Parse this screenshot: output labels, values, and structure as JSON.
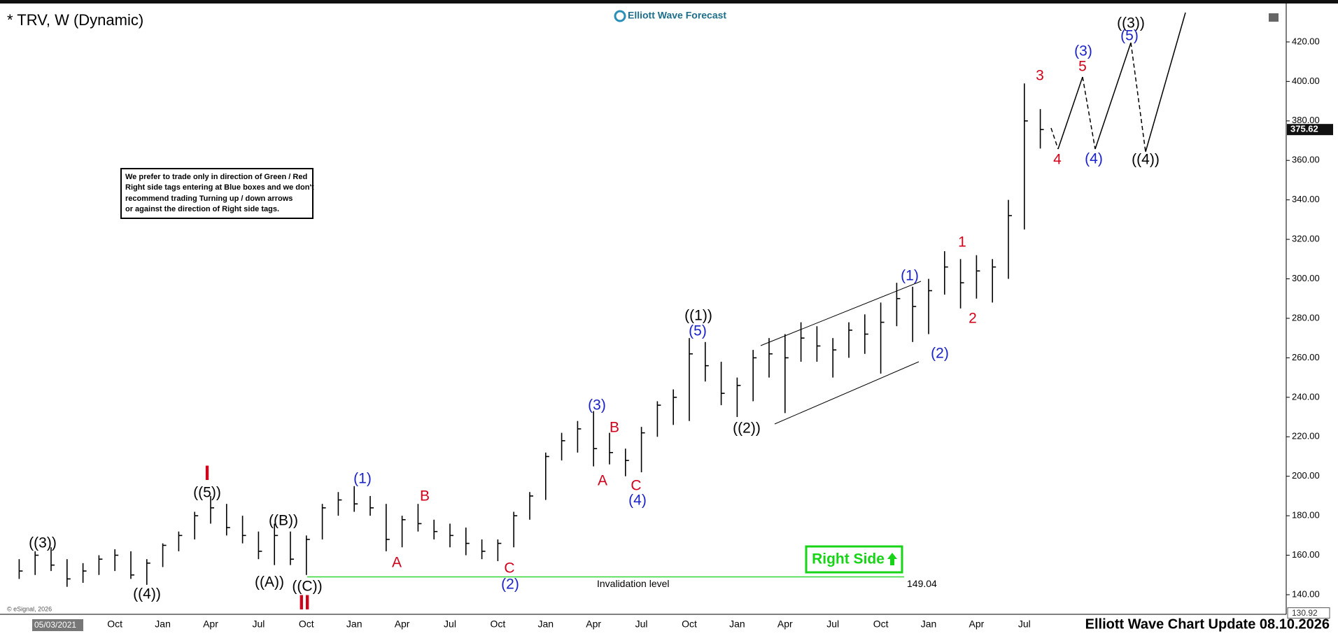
{
  "chart_data": {
    "type": "ohlc",
    "title": "* TRV, W (Dynamic)",
    "logo": "Elliott Wave Forecast",
    "footer": "Elliott Wave Chart Update 08.10.2026",
    "copyright": "© eSignal, 2026",
    "start_date": "05/03/2021",
    "note": [
      "We prefer to trade only in direction of Green / Red",
      "Right side tags entering at Blue boxes and we don't",
      "recommend trading Turning up / down arrows",
      "or against the direction of Right side tags."
    ],
    "right_side_tag": "Right Side",
    "invalidation": {
      "label": "Invalidation level",
      "value": 149.04
    },
    "last_price": 375.62,
    "bar_color": "#000000",
    "categories": [
      null,
      null,
      null,
      null,
      null,
      null,
      "Oct",
      null,
      null,
      "Jan",
      null,
      null,
      "Apr",
      null,
      null,
      "Jul",
      null,
      null,
      "Oct",
      null,
      null,
      "Jan",
      null,
      null,
      "Apr",
      null,
      null,
      "Jul",
      null,
      null,
      "Oct",
      null,
      null,
      "Jan",
      null,
      null,
      "Apr",
      null,
      null,
      "Jul",
      null,
      null,
      "Oct",
      null,
      null,
      "Jan",
      null,
      null,
      "Apr",
      null,
      null,
      "Jul",
      null,
      null,
      "Oct",
      null,
      null,
      "Jan",
      null,
      null,
      "Apr",
      null,
      null,
      "Jul",
      null
    ],
    "high": [
      158,
      162,
      164,
      158,
      156,
      160,
      163,
      162,
      158,
      166,
      172,
      182,
      190,
      186,
      180,
      172,
      176,
      172,
      170,
      186,
      192,
      195,
      190,
      186,
      180,
      186,
      178,
      176,
      174,
      168,
      168,
      182,
      192,
      212,
      222,
      228,
      233,
      222,
      214,
      225,
      238,
      244,
      270,
      268,
      258,
      250,
      264,
      270,
      272,
      278,
      276,
      270,
      278,
      282,
      288,
      298,
      296,
      300,
      314,
      310,
      312,
      310,
      340,
      399,
      386
    ],
    "low": [
      148,
      150,
      152,
      144,
      146,
      150,
      152,
      148,
      145,
      154,
      162,
      168,
      176,
      170,
      166,
      158,
      155,
      155,
      150,
      168,
      180,
      182,
      180,
      162,
      164,
      172,
      168,
      164,
      160,
      158,
      157,
      164,
      178,
      188,
      208,
      212,
      205,
      206,
      200,
      202,
      220,
      226,
      228,
      248,
      236,
      230,
      238,
      250,
      232,
      258,
      258,
      250,
      260,
      262,
      252,
      276,
      268,
      272,
      292,
      285,
      290,
      288,
      300,
      325,
      366
    ],
    "close": [
      152,
      160,
      155,
      148,
      152,
      158,
      160,
      150,
      156,
      165,
      170,
      180,
      184,
      174,
      170,
      162,
      170,
      158,
      168,
      184,
      188,
      186,
      184,
      168,
      178,
      176,
      172,
      170,
      166,
      162,
      166,
      180,
      190,
      210,
      218,
      224,
      214,
      212,
      208,
      222,
      236,
      240,
      262,
      256,
      242,
      246,
      260,
      262,
      260,
      270,
      266,
      264,
      274,
      272,
      278,
      290,
      286,
      294,
      306,
      298,
      304,
      306,
      332,
      380,
      375.62
    ],
    "ylim": [
      130.92,
      437.7
    ],
    "yticks": [
      {
        "value": 140,
        "label": "140.00"
      },
      {
        "value": 160,
        "label": "160.00"
      },
      {
        "value": 180,
        "label": "180.00"
      },
      {
        "value": 200,
        "label": "200.00"
      },
      {
        "value": 220,
        "label": "220.00"
      },
      {
        "value": 240,
        "label": "240.00"
      },
      {
        "value": 260,
        "label": "260.00"
      },
      {
        "value": 280,
        "label": "280.00"
      },
      {
        "value": 300,
        "label": "300.00"
      },
      {
        "value": 320,
        "label": "320.00"
      },
      {
        "value": 340,
        "label": "340.00"
      },
      {
        "value": 360,
        "label": "360.00"
      },
      {
        "value": 380,
        "label": "380.00"
      },
      {
        "value": 400,
        "label": "400.00"
      },
      {
        "value": 420,
        "label": "420.00"
      }
    ],
    "wave_labels": [
      {
        "text": "((3))",
        "color": "#000000"
      },
      {
        "text": "((4))",
        "color": "#000000"
      },
      {
        "text": "((5))",
        "color": "#000000"
      },
      {
        "text": "I",
        "color": "#d0021b"
      },
      {
        "text": "((B))",
        "color": "#000000"
      },
      {
        "text": "((A))",
        "color": "#000000"
      },
      {
        "text": "((C))",
        "color": "#000000"
      },
      {
        "text": "II",
        "color": "#d0021b"
      },
      {
        "text": "(1)",
        "color": "#1a22c8"
      },
      {
        "text": "A",
        "color": "#d0021b"
      },
      {
        "text": "B",
        "color": "#d0021b"
      },
      {
        "text": "C",
        "color": "#d0021b"
      },
      {
        "text": "(2)",
        "color": "#1a22c8"
      },
      {
        "text": "(3)",
        "color": "#1a22c8"
      },
      {
        "text": "A",
        "color": "#d0021b"
      },
      {
        "text": "B",
        "color": "#d0021b"
      },
      {
        "text": "C",
        "color": "#d0021b"
      },
      {
        "text": "(4)",
        "color": "#1a22c8"
      },
      {
        "text": "((1))",
        "color": "#000000"
      },
      {
        "text": "(5)",
        "color": "#1a22c8"
      },
      {
        "text": "((2))",
        "color": "#000000"
      },
      {
        "text": "(1)",
        "color": "#1a22c8"
      },
      {
        "text": "(2)",
        "color": "#1a22c8"
      },
      {
        "text": "1",
        "color": "#d0021b"
      },
      {
        "text": "2",
        "color": "#d0021b"
      },
      {
        "text": "3",
        "color": "#d0021b"
      },
      {
        "text": "4",
        "color": "#d0021b"
      },
      {
        "text": "(3)",
        "color": "#1a22c8"
      },
      {
        "text": "5",
        "color": "#d0021b"
      },
      {
        "text": "(4)",
        "color": "#1a22c8"
      },
      {
        "text": "((3))",
        "color": "#000000"
      },
      {
        "text": "(5)",
        "color": "#1a22c8"
      },
      {
        "text": "((4))",
        "color": "#000000"
      }
    ]
  }
}
